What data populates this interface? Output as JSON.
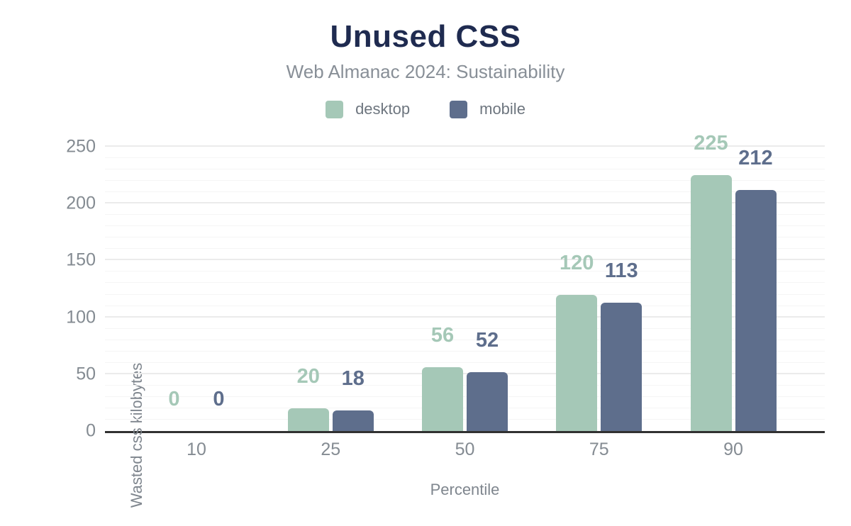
{
  "chart_data": {
    "type": "bar",
    "title": "Unused CSS",
    "subtitle": "Web Almanac 2024: Sustainability",
    "xlabel": "Percentile",
    "ylabel": "Wasted css kilobytes",
    "categories": [
      "10",
      "25",
      "50",
      "75",
      "90"
    ],
    "series": [
      {
        "name": "desktop",
        "color": "#a5c8b7",
        "values": [
          0,
          20,
          56,
          120,
          225
        ]
      },
      {
        "name": "mobile",
        "color": "#5e6e8c",
        "values": [
          0,
          18,
          52,
          113,
          212
        ]
      }
    ],
    "ylim": [
      0,
      250
    ],
    "yticks": [
      0,
      50,
      100,
      150,
      200,
      250
    ],
    "grid": {
      "orientation": "horizontal",
      "minor_step": 10,
      "major_step": 50
    },
    "legend_position": "top",
    "colors": {
      "title": "#1f2b50",
      "subtitle": "#888f97",
      "axis_line": "#313131",
      "tick_text": "#848b92"
    }
  }
}
